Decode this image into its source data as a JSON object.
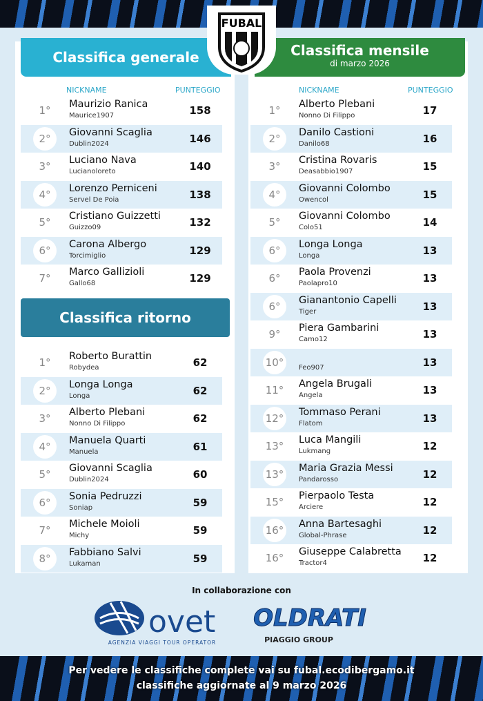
{
  "header": {
    "logo": "FUBAL"
  },
  "general": {
    "title": "Classifica generale",
    "col_nickname": "NICKNAME",
    "col_points": "PUNTEGGIO",
    "rows": [
      {
        "rank": "1°",
        "name": "Maurizio Ranica",
        "nick": "Maurice1907",
        "points": 158
      },
      {
        "rank": "2°",
        "name": "Giovanni Scaglia",
        "nick": "Dublin2024",
        "points": 146
      },
      {
        "rank": "3°",
        "name": "Luciano Nava",
        "nick": "Lucianoloreto",
        "points": 140
      },
      {
        "rank": "4°",
        "name": "Lorenzo Perniceni",
        "nick": "Servel De Poia",
        "points": 138
      },
      {
        "rank": "5°",
        "name": "Cristiano Guizzetti",
        "nick": "Guizzo09",
        "points": 132
      },
      {
        "rank": "6°",
        "name": "Carona Albergo",
        "nick": "Torcimiglio",
        "points": 129
      },
      {
        "rank": "7°",
        "name": "Marco Gallizioli",
        "nick": "Gallo68",
        "points": 129
      }
    ]
  },
  "ritorno": {
    "title": "Classifica ritorno",
    "rows": [
      {
        "rank": "1°",
        "name": "Roberto Burattin",
        "nick": "Robydea",
        "points": 62
      },
      {
        "rank": "2°",
        "name": "Longa Longa",
        "nick": "Longa",
        "points": 62
      },
      {
        "rank": "3°",
        "name": "Alberto Plebani",
        "nick": "Nonno Di Filippo",
        "points": 62
      },
      {
        "rank": "4°",
        "name": "Manuela Quarti",
        "nick": "Manuela",
        "points": 61
      },
      {
        "rank": "5°",
        "name": "Giovanni Scaglia",
        "nick": "Dublin2024",
        "points": 60
      },
      {
        "rank": "6°",
        "name": "Sonia Pedruzzi",
        "nick": "Soniap",
        "points": 59
      },
      {
        "rank": "7°",
        "name": "Michele Moioli",
        "nick": "Michy",
        "points": 59
      },
      {
        "rank": "8°",
        "name": "Fabbiano Salvi",
        "nick": "Lukaman",
        "points": 59
      }
    ]
  },
  "mensile": {
    "title": "Classifica mensile",
    "subtitle": "di marzo 2026",
    "col_nickname": "NICKNAME",
    "col_points": "PUNTEGGIO",
    "rows": [
      {
        "rank": "1°",
        "name": "Alberto Plebani",
        "nick": "Nonno Di Filippo",
        "points": 17
      },
      {
        "rank": "2°",
        "name": "Danilo Castioni",
        "nick": "Danilo68",
        "points": 16
      },
      {
        "rank": "3°",
        "name": "Cristina Rovaris",
        "nick": "Deasabbio1907",
        "points": 15
      },
      {
        "rank": "4°",
        "name": "Giovanni Colombo",
        "nick": "Owencol",
        "points": 15
      },
      {
        "rank": "5°",
        "name": "Giovanni Colombo",
        "nick": "Colo51",
        "points": 14
      },
      {
        "rank": "6°",
        "name": "Longa Longa",
        "nick": "Longa",
        "points": 13
      },
      {
        "rank": "6°",
        "name": "Paola Provenzi",
        "nick": "Paolapro10",
        "points": 13
      },
      {
        "rank": "6°",
        "name": "Gianantonio Capelli",
        "nick": "Tiger",
        "points": 13
      },
      {
        "rank": "9°",
        "name": "Piera Gambarini",
        "nick": "Camo12",
        "points": 13
      },
      {
        "rank": "10°",
        "nick": "Feo907",
        "points": 13
      },
      {
        "rank": "11°",
        "name": "Angela Brugali",
        "nick": "Angela",
        "points": 13
      },
      {
        "rank": "12°",
        "name": "Tommaso Perani",
        "nick": "Flatom",
        "points": 13
      },
      {
        "rank": "13°",
        "name": "Luca Mangili",
        "nick": "Lukmang",
        "points": 12
      },
      {
        "rank": "13°",
        "name": "Maria Grazia Messi",
        "nick": "Pandarosso",
        "points": 12
      },
      {
        "rank": "15°",
        "name": "Pierpaolo Testa",
        "nick": "Arciere",
        "points": 12
      },
      {
        "rank": "16°",
        "name": "Anna Bartesaghi",
        "nick": "Global-Phrase",
        "points": 12
      },
      {
        "rank": "16°",
        "name": "Giuseppe Calabretta",
        "nick": "Tractor4",
        "points": 12
      }
    ]
  },
  "footer": {
    "collab": "In collaborazione con",
    "sponsor1": "ovet",
    "sponsor1_tag": "AGENZIA VIAGGI TOUR OPERATOR",
    "sponsor2": "OLDRATI",
    "sponsor2_tag": "PIAGGIO GROUP",
    "line1": "Per vedere le classifiche complete vai su fubal.ecodibergamo.it",
    "line2": "classifiche aggiornate al 9 marzo 2026"
  }
}
